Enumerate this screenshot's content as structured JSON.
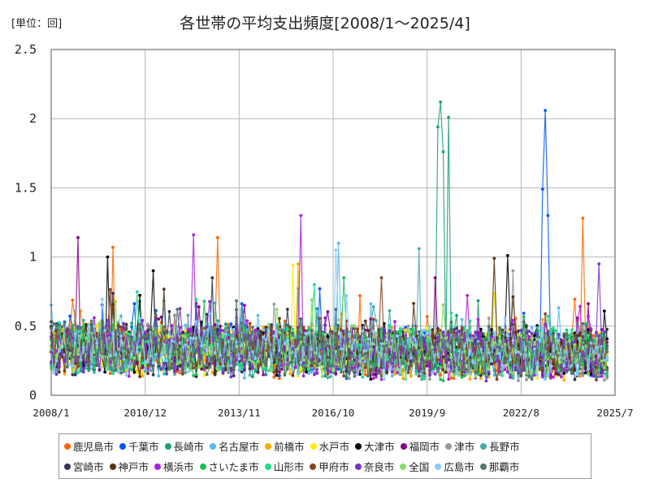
{
  "unit_label": "[単位：回]",
  "title": "各世帯の平均支出頻度[2008/1～2025/4]",
  "chart_data": {
    "type": "line",
    "title": "各世帯の平均支出頻度[2008/1～2025/4]",
    "ylabel": "[単位：回]",
    "ylim": [
      0,
      2.5
    ],
    "y_ticks": [
      "2.5",
      "2",
      "1.5",
      "1",
      "0.5",
      "0"
    ],
    "x_ticks": [
      "2008/1",
      "2010/12",
      "2013/11",
      "2016/10",
      "2019/9",
      "2022/8",
      "2025/7"
    ],
    "grid": true,
    "legend_position": "bottom",
    "series": [
      {
        "name": "鹿児島市",
        "color": "#ff6600",
        "peaks": [
          [
            "2009/12",
            1.07
          ],
          [
            "2013/3",
            1.14
          ],
          [
            "2024/7",
            1.28
          ]
        ]
      },
      {
        "name": "千葉市",
        "color": "#0055ff",
        "peaks": [
          [
            "2023/4",
            1.49
          ],
          [
            "2023/5",
            2.06
          ],
          [
            "2023/6",
            1.3
          ]
        ]
      },
      {
        "name": "長崎市",
        "color": "#1a9c7a",
        "peaks": [
          [
            "2020/1",
            1.94
          ],
          [
            "2020/2",
            2.12
          ],
          [
            "2020/3",
            1.76
          ],
          [
            "2020/5",
            2.01
          ]
        ]
      },
      {
        "name": "名古屋市",
        "color": "#55bbee",
        "peaks": [
          [
            "2016/12",
            1.1
          ]
        ]
      },
      {
        "name": "前橋市",
        "color": "#ffaa00",
        "peaks": [
          [
            "2015/9",
            0.95
          ]
        ]
      },
      {
        "name": "水戸市",
        "color": "#ffee00",
        "peaks": [
          [
            "2015/7",
            0.94
          ]
        ]
      },
      {
        "name": "大津市",
        "color": "#000000",
        "peaks": [
          [
            "2009/10",
            1.0
          ],
          [
            "2011/3",
            0.9
          ],
          [
            "2022/3",
            1.01
          ]
        ]
      },
      {
        "name": "福岡市",
        "color": "#880088",
        "peaks": [
          [
            "2008/11",
            1.14
          ],
          [
            "2019/12",
            0.85
          ]
        ]
      },
      {
        "name": "津市",
        "color": "#999999",
        "peaks": [
          [
            "2022/5",
            0.9
          ]
        ]
      },
      {
        "name": "長野市",
        "color": "#44aaaa",
        "peaks": [
          [
            "2019/6",
            1.06
          ]
        ]
      },
      {
        "name": "宮崎市",
        "color": "#333355",
        "peaks": [
          [
            "2013/1",
            0.85
          ]
        ]
      },
      {
        "name": "神戸市",
        "color": "#553311",
        "peaks": [
          [
            "2021/10",
            0.99
          ]
        ]
      },
      {
        "name": "横浜市",
        "color": "#aa22dd",
        "peaks": [
          [
            "2012/6",
            1.16
          ],
          [
            "2015/10",
            1.3
          ]
        ]
      },
      {
        "name": "さいたま市",
        "color": "#22bb55",
        "peaks": [
          [
            "2017/2",
            0.85
          ]
        ]
      },
      {
        "name": "山形市",
        "color": "#22dd88",
        "peaks": [
          [
            "2016/3",
            0.8
          ]
        ]
      },
      {
        "name": "甲府市",
        "color": "#884422",
        "peaks": [
          [
            "2018/4",
            0.85
          ]
        ]
      },
      {
        "name": "奈良市",
        "color": "#7733cc",
        "peaks": [
          [
            "2025/1",
            0.95
          ]
        ]
      },
      {
        "name": "全国",
        "color": "#88dd66",
        "peaks": []
      },
      {
        "name": "広島市",
        "color": "#88ccff",
        "peaks": [
          [
            "2016/11",
            1.05
          ]
        ]
      },
      {
        "name": "那覇市",
        "color": "#557766",
        "peaks": []
      }
    ]
  }
}
